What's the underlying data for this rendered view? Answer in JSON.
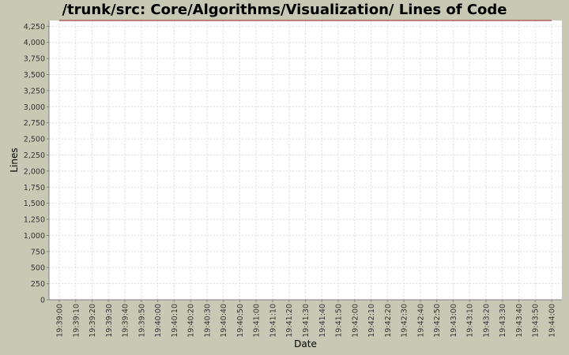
{
  "chart_data": {
    "type": "line",
    "title": "/trunk/src: Core/Algorithms/Visualization/ Lines of Code",
    "xlabel": "Date",
    "ylabel": "Lines",
    "ylim": [
      0,
      4340
    ],
    "y_ticks": [
      0,
      250,
      500,
      750,
      1000,
      1250,
      1500,
      1750,
      2000,
      2250,
      2500,
      2750,
      3000,
      3250,
      3500,
      3750,
      4000,
      4250
    ],
    "y_tick_labels": [
      "0",
      "250",
      "500",
      "750",
      "1,000",
      "1,250",
      "1,500",
      "1,750",
      "2,000",
      "2,250",
      "2,500",
      "2,750",
      "3,000",
      "3,250",
      "3,500",
      "3,750",
      "4,000",
      "4,250"
    ],
    "x_ticks": [
      "19:39:00",
      "19:39:10",
      "19:39:20",
      "19:39:30",
      "19:39:40",
      "19:39:50",
      "19:40:00",
      "19:40:10",
      "19:40:20",
      "19:40:30",
      "19:40:40",
      "19:40:50",
      "19:41:00",
      "19:41:10",
      "19:41:20",
      "19:41:30",
      "19:41:40",
      "19:41:50",
      "19:42:00",
      "19:42:10",
      "19:42:20",
      "19:42:30",
      "19:42:40",
      "19:42:50",
      "19:43:00",
      "19:43:10",
      "19:43:20",
      "19:43:30",
      "19:43:40",
      "19:43:50",
      "19:44:00"
    ],
    "grid": true,
    "series": [
      {
        "color": "#9c1c1c",
        "x": [
          "19:39:00",
          "19:44:00"
        ],
        "values": [
          4340,
          4340
        ]
      }
    ]
  }
}
